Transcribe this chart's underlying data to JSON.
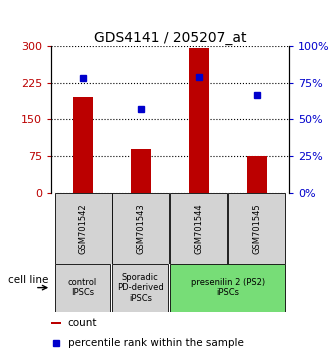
{
  "title": "GDS4141 / 205207_at",
  "samples": [
    "GSM701542",
    "GSM701543",
    "GSM701544",
    "GSM701545"
  ],
  "counts": [
    195,
    90,
    295,
    75
  ],
  "percentiles": [
    78,
    57,
    79,
    67
  ],
  "ylim_left": [
    0,
    300
  ],
  "ylim_right": [
    0,
    100
  ],
  "yticks_left": [
    0,
    75,
    150,
    225,
    300
  ],
  "yticks_right": [
    0,
    25,
    50,
    75,
    100
  ],
  "bar_color": "#bb0000",
  "dot_color": "#0000cc",
  "group_positions": [
    {
      "start": 0,
      "end": 1,
      "color": "#d3d3d3",
      "label": "control\nIPSCs"
    },
    {
      "start": 1,
      "end": 2,
      "color": "#d3d3d3",
      "label": "Sporadic\nPD-derived\niPSCs"
    },
    {
      "start": 2,
      "end": 4,
      "color": "#77dd77",
      "label": "presenilin 2 (PS2)\niPSCs"
    }
  ],
  "cell_line_label": "cell line",
  "legend_count_label": "count",
  "legend_pct_label": "percentile rank within the sample",
  "title_fontsize": 10,
  "tick_fontsize": 8,
  "sample_fontsize": 6,
  "group_fontsize": 6,
  "legend_fontsize": 7.5,
  "bar_width": 0.35,
  "xlim": [
    -0.55,
    3.55
  ]
}
